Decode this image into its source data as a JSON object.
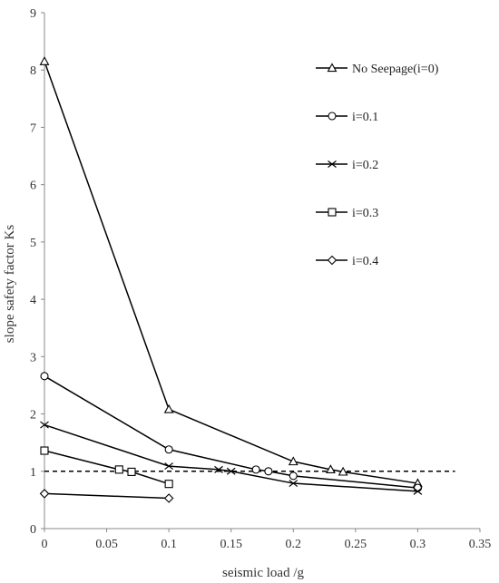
{
  "chart_data": {
    "type": "line",
    "title": "",
    "xlabel": "seismic load /g",
    "ylabel": "slope safety factor  Ks",
    "xlim": [
      0,
      0.35
    ],
    "ylim": [
      0,
      9
    ],
    "xticks": [
      "0",
      "0.05",
      "0.1",
      "0.15",
      "0.2",
      "0.25",
      "0.3",
      "0.35"
    ],
    "yticks": [
      "0",
      "1",
      "2",
      "3",
      "4",
      "5",
      "6",
      "7",
      "8",
      "9"
    ],
    "grid": false,
    "legend_position": "right",
    "reference_line": {
      "y": 1.0,
      "x_range": [
        0,
        0.33
      ],
      "style": "dashed"
    },
    "series": [
      {
        "name": "No Seepage(i=0)",
        "marker": "triangle",
        "x": [
          0,
          0.1,
          0.2,
          0.23,
          0.24,
          0.3
        ],
        "y": [
          8.15,
          2.08,
          1.17,
          1.03,
          0.99,
          0.79
        ]
      },
      {
        "name": "i=0.1",
        "marker": "circle",
        "x": [
          0,
          0.1,
          0.17,
          0.18,
          0.2,
          0.3
        ],
        "y": [
          2.66,
          1.38,
          1.03,
          1.0,
          0.92,
          0.71
        ]
      },
      {
        "name": "i=0.2",
        "marker": "x",
        "x": [
          0,
          0.1,
          0.14,
          0.15,
          0.2,
          0.3
        ],
        "y": [
          1.81,
          1.09,
          1.03,
          1.0,
          0.79,
          0.65
        ]
      },
      {
        "name": "i=0.3",
        "marker": "square",
        "x": [
          0,
          0.06,
          0.07,
          0.1
        ],
        "y": [
          1.36,
          1.03,
          0.99,
          0.78
        ]
      },
      {
        "name": "i=0.4",
        "marker": "diamond",
        "x": [
          0,
          0.1
        ],
        "y": [
          0.61,
          0.53
        ]
      }
    ]
  }
}
